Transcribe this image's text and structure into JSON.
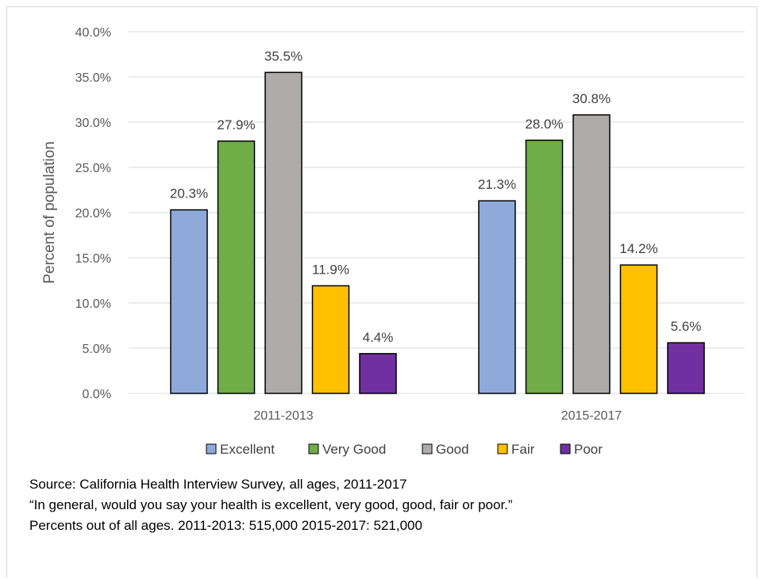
{
  "chart_data": {
    "type": "bar",
    "categories": [
      "2011-2013",
      "2015-2017"
    ],
    "series": [
      {
        "name": "Excellent",
        "values": [
          20.3,
          21.3
        ],
        "color": "#8eaadb",
        "labels": [
          "20.3%",
          "21.3%"
        ]
      },
      {
        "name": "Very Good",
        "values": [
          27.9,
          28.0
        ],
        "color": "#70ad47",
        "labels": [
          "27.9%",
          "28.0%"
        ]
      },
      {
        "name": "Good",
        "values": [
          35.5,
          30.8
        ],
        "color": "#afabab",
        "labels": [
          "35.5%",
          "30.8%"
        ]
      },
      {
        "name": "Fair",
        "values": [
          11.9,
          14.2
        ],
        "color": "#ffc000",
        "labels": [
          "11.9%",
          "14.2%"
        ]
      },
      {
        "name": "Poor",
        "values": [
          4.4,
          5.6
        ],
        "color": "#7030a0",
        "labels": [
          "4.4%",
          "5.6%"
        ]
      }
    ],
    "ylabel": "Percent of population",
    "ylim": [
      0,
      40
    ],
    "yticks": [
      "0.0%",
      "5.0%",
      "10.0%",
      "15.0%",
      "20.0%",
      "25.0%",
      "30.0%",
      "35.0%",
      "40.0%"
    ],
    "grid": true,
    "legend_position": "bottom"
  },
  "notes": {
    "source": "Source: California Health Interview Survey, all ages, 2011-2017",
    "question": "“In general, would you say your health is excellent, very good, good, fair or poor.”",
    "counts": "Percents out of all ages.  2011-2013: 515,000  2015-2017: 521,000"
  }
}
